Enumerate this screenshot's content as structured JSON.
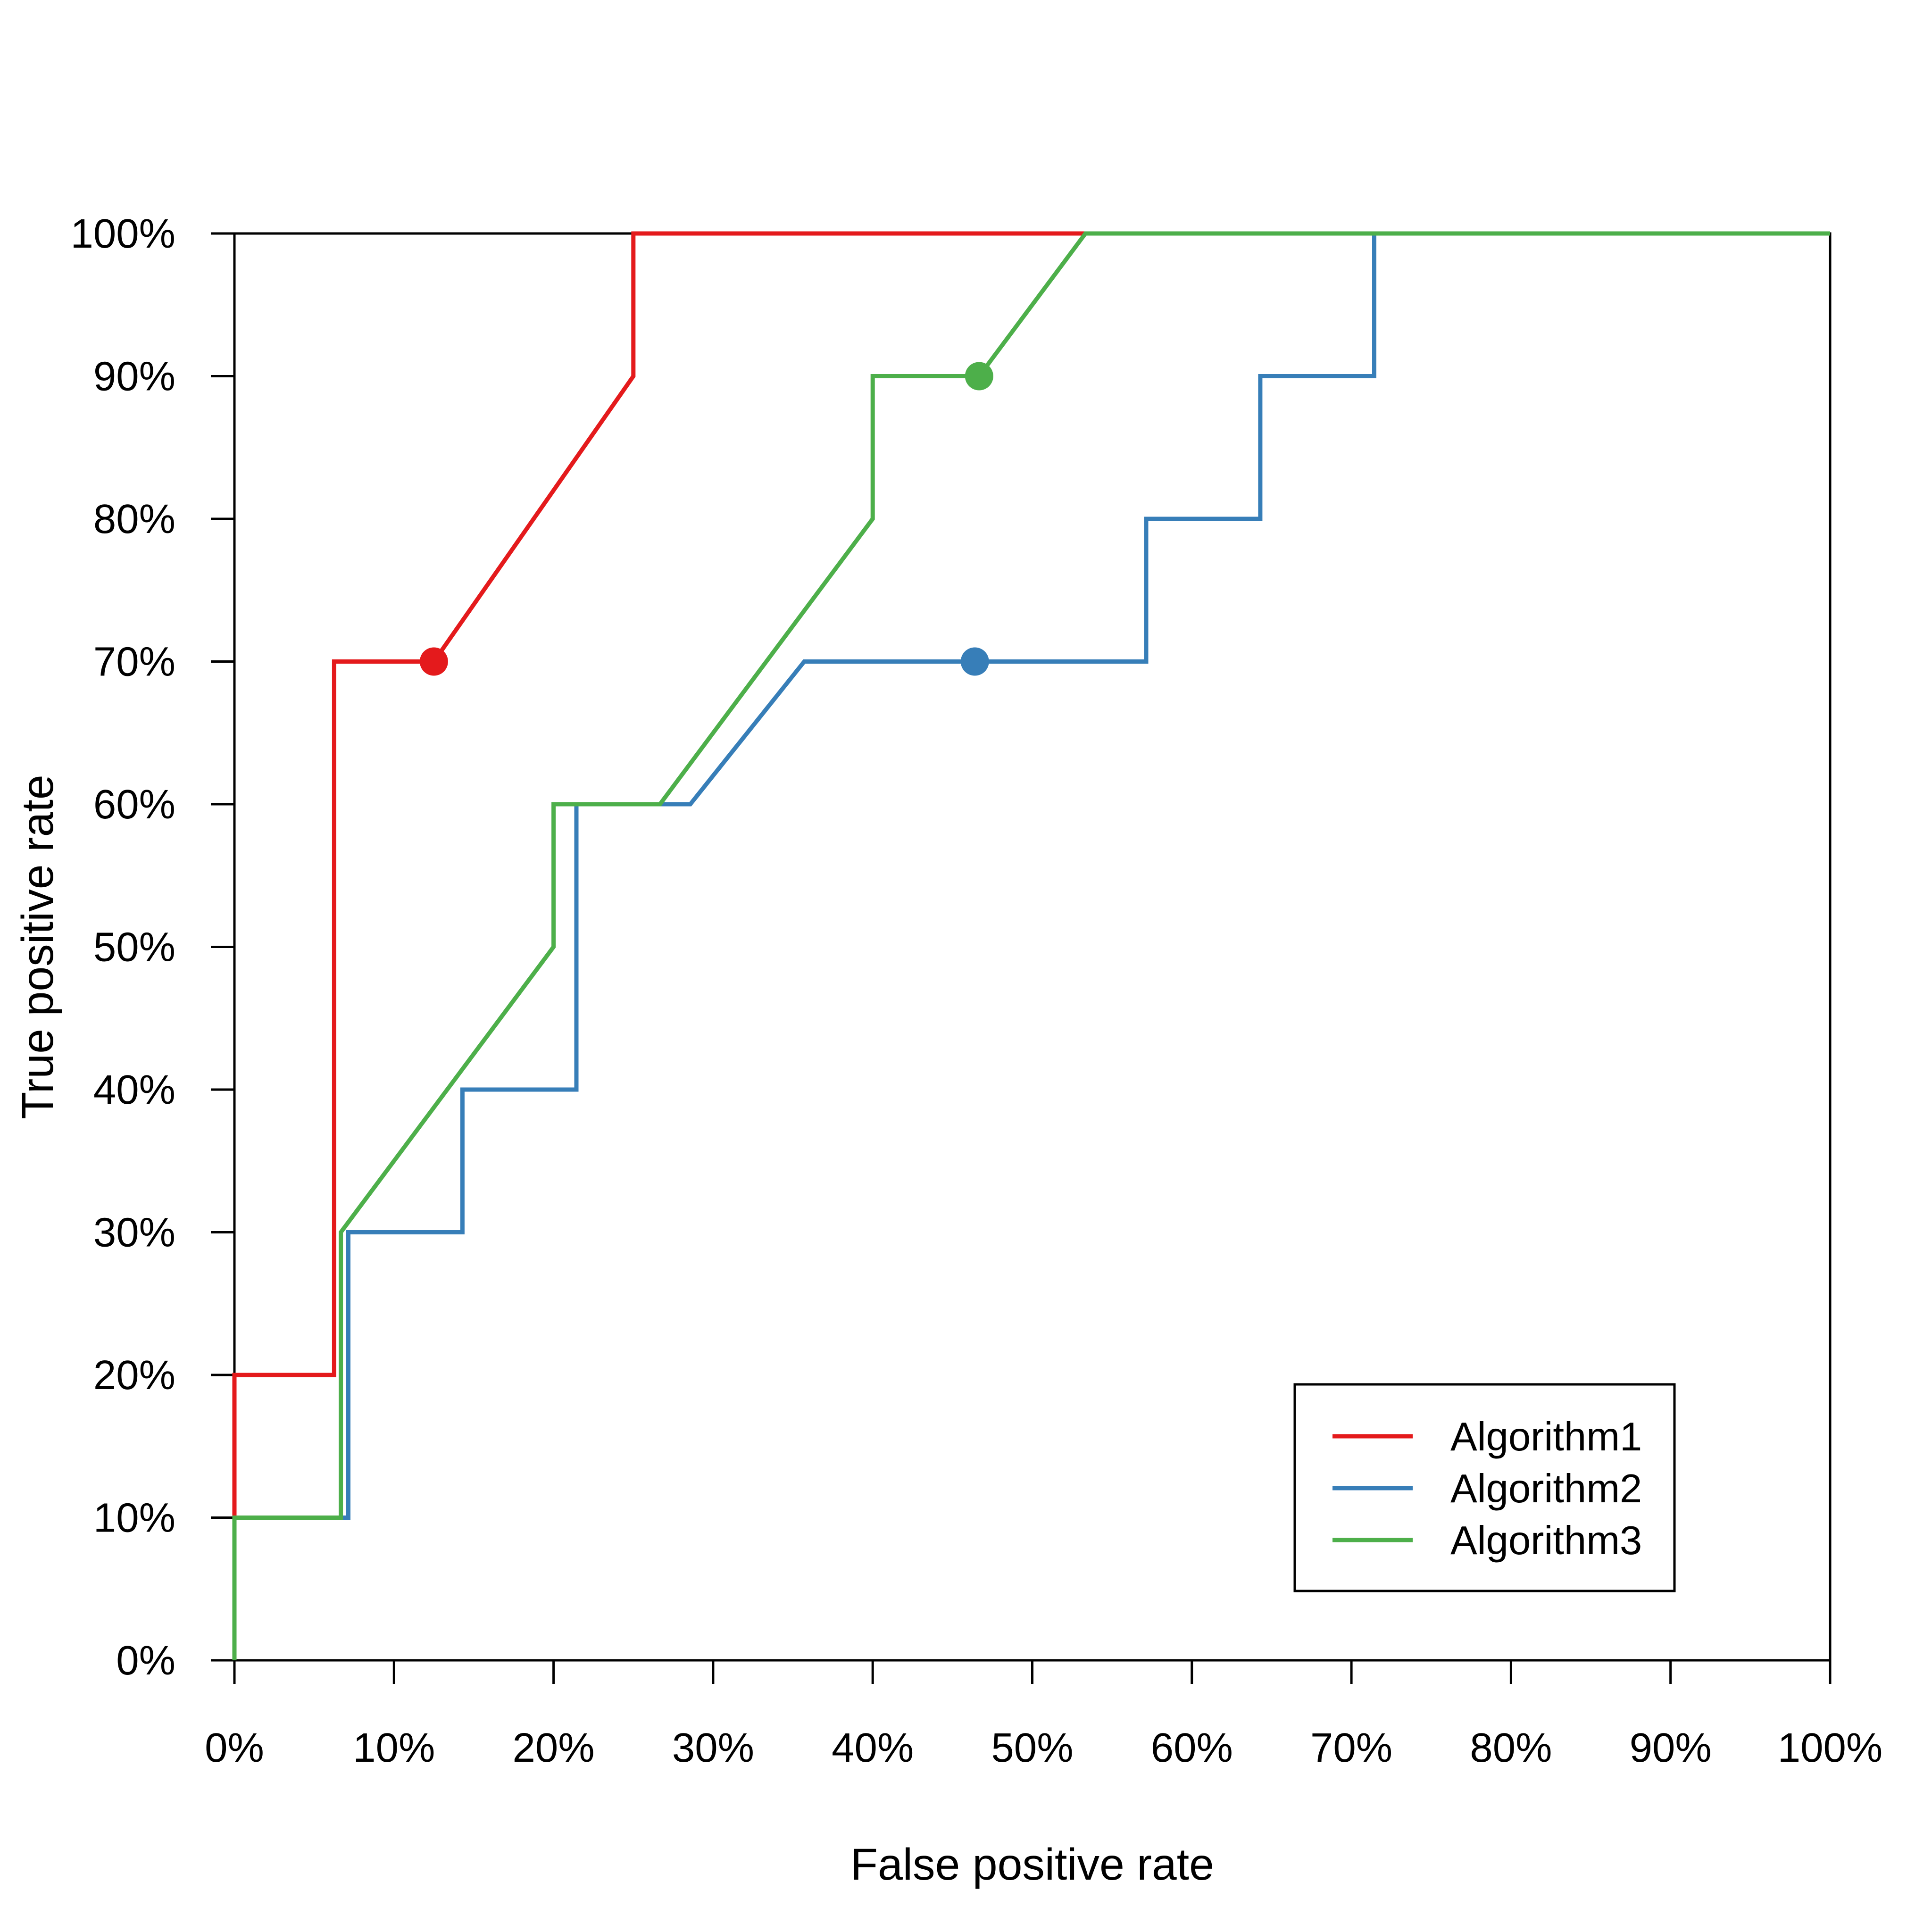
{
  "chart_data": {
    "type": "line",
    "title": "",
    "xlabel": "False positive rate",
    "ylabel": "True positive rate",
    "xlim": [
      0,
      1
    ],
    "ylim": [
      0,
      1
    ],
    "x_ticks": [
      "0%",
      "10%",
      "20%",
      "30%",
      "40%",
      "50%",
      "60%",
      "70%",
      "80%",
      "90%",
      "100%"
    ],
    "y_ticks": [
      "0%",
      "10%",
      "20%",
      "30%",
      "40%",
      "50%",
      "60%",
      "70%",
      "80%",
      "90%",
      "100%"
    ],
    "grid": false,
    "legend_position": "bottom-right",
    "series": [
      {
        "name": "Algorithm1",
        "color": "#E41A1C",
        "points": [
          [
            0,
            0
          ],
          [
            0,
            0.1
          ],
          [
            0,
            0.2
          ],
          [
            0.0625,
            0.2
          ],
          [
            0.0625,
            0.7
          ],
          [
            0.125,
            0.7
          ],
          [
            0.25,
            0.9
          ],
          [
            0.25,
            1.0
          ],
          [
            1.0,
            1.0
          ]
        ],
        "marker": [
          0.125,
          0.7
        ]
      },
      {
        "name": "Algorithm2",
        "color": "#377EB8",
        "points": [
          [
            0,
            0
          ],
          [
            0,
            0.1
          ],
          [
            0.0714,
            0.1
          ],
          [
            0.0714,
            0.3
          ],
          [
            0.1429,
            0.3
          ],
          [
            0.1429,
            0.4
          ],
          [
            0.2143,
            0.4
          ],
          [
            0.2143,
            0.6
          ],
          [
            0.2857,
            0.6
          ],
          [
            0.3571,
            0.7
          ],
          [
            0.5714,
            0.7
          ],
          [
            0.5714,
            0.8
          ],
          [
            0.6429,
            0.8
          ],
          [
            0.6429,
            0.9
          ],
          [
            0.7143,
            0.9
          ],
          [
            0.7143,
            1.0
          ],
          [
            1.0,
            1.0
          ]
        ],
        "marker": [
          0.464,
          0.7
        ]
      },
      {
        "name": "Algorithm3",
        "color": "#4DAF4A",
        "points": [
          [
            0,
            0
          ],
          [
            0,
            0.1
          ],
          [
            0.0667,
            0.1
          ],
          [
            0.0667,
            0.3
          ],
          [
            0.2,
            0.5
          ],
          [
            0.2,
            0.6
          ],
          [
            0.2667,
            0.6
          ],
          [
            0.4,
            0.8
          ],
          [
            0.4,
            0.9
          ],
          [
            0.4667,
            0.9
          ],
          [
            0.5333,
            1.0
          ],
          [
            1.0,
            1.0
          ]
        ],
        "marker": [
          0.4667,
          0.9
        ]
      }
    ]
  }
}
